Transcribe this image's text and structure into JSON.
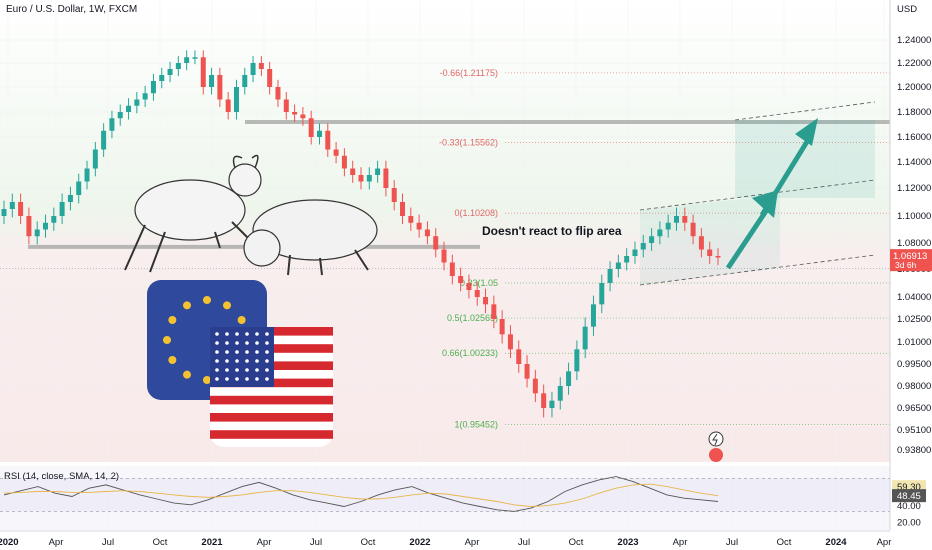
{
  "chart_title": "Euro / U.S. Dollar, 1W, FXCM",
  "chart_data": {
    "type": "candlestick",
    "title": "Euro / U.S. Dollar, 1W, FXCM",
    "currency": "USD",
    "y_ticks": [
      "1.24000",
      "1.22000",
      "1.20000",
      "1.18000",
      "1.16000",
      "1.14000",
      "1.12000",
      "1.10000",
      "1.08000",
      "1.06000",
      "1.04000",
      "1.02500",
      "1.01000",
      "0.99500",
      "0.98000",
      "0.96500",
      "0.95100",
      "0.93800"
    ],
    "x_ticks": [
      "2020",
      "Apr",
      "Jul",
      "Oct",
      "2021",
      "Apr",
      "Jul",
      "Oct",
      "2022",
      "Apr",
      "Jul",
      "Oct",
      "2023",
      "Apr",
      "Jul",
      "Oct",
      "2024",
      "Apr"
    ],
    "series": [
      {
        "name": "weekly close",
        "values": [
          1.105,
          1.11,
          1.1,
          1.085,
          1.09,
          1.095,
          1.1,
          1.11,
          1.115,
          1.125,
          1.135,
          1.15,
          1.165,
          1.175,
          1.18,
          1.185,
          1.19,
          1.195,
          1.205,
          1.21,
          1.215,
          1.22,
          1.225,
          1.225,
          1.2,
          1.21,
          1.19,
          1.18,
          1.2,
          1.21,
          1.22,
          1.215,
          1.2,
          1.19,
          1.18,
          1.178,
          1.175,
          1.16,
          1.165,
          1.15,
          1.145,
          1.135,
          1.13,
          1.125,
          1.13,
          1.135,
          1.12,
          1.11,
          1.1,
          1.095,
          1.09,
          1.085,
          1.075,
          1.065,
          1.055,
          1.05,
          1.045,
          1.04,
          1.035,
          1.025,
          1.015,
          1.005,
          0.995,
          0.985,
          0.975,
          0.965,
          0.97,
          0.98,
          0.99,
          1.005,
          1.02,
          1.035,
          1.05,
          1.06,
          1.065,
          1.07,
          1.075,
          1.08,
          1.085,
          1.09,
          1.095,
          1.1,
          1.095,
          1.085,
          1.075,
          1.07,
          1.069
        ]
      }
    ],
    "current_price": "1.06913",
    "countdown": "3d 6h",
    "annotations": {
      "note": "Doesn't react to flip area",
      "fib_levels": [
        {
          "label": "-0.66(1.21175)",
          "value": 1.21175
        },
        {
          "label": "-0.33(1.15562)",
          "value": 1.15562
        },
        {
          "label": "0(1.10208)",
          "value": 1.10208
        },
        {
          "label": "0.33(1.05",
          "value": 1.05
        },
        {
          "label": "0.5(1.02565)",
          "value": 1.02565
        },
        {
          "label": "0.66(1.00233)",
          "value": 1.00233
        },
        {
          "label": "1(0.95452)",
          "value": 0.95452
        }
      ],
      "resistance_levels": [
        1.172,
        1.077
      ],
      "colors": {
        "bull": "#26a69a",
        "bear": "#ef5350",
        "fib_upper": "#e06666",
        "fib_lower": "#4caf50",
        "channel": "#9e9e9e",
        "arrow": "#2a9d8f"
      }
    },
    "rsi": {
      "label": "RSI (14, close, SMA, 14, 2)",
      "value_1": "59.30",
      "value_2": "48.45",
      "ticks": [
        "40.00",
        "20.00"
      ],
      "levels": [
        70,
        30
      ],
      "series": [
        {
          "name": "rsi",
          "values": [
            50,
            55,
            60,
            52,
            48,
            58,
            62,
            56,
            50,
            45,
            40,
            38,
            44,
            52,
            60,
            65,
            58,
            50,
            44,
            40,
            36,
            42,
            50,
            56,
            60,
            52,
            46,
            40,
            36,
            32,
            30,
            34,
            42,
            54,
            62,
            68,
            72,
            66,
            58,
            50,
            46,
            44,
            42
          ]
        },
        {
          "name": "sma",
          "values": [
            52,
            53,
            54,
            54,
            53,
            53,
            54,
            55,
            54,
            52,
            50,
            48,
            47,
            48,
            50,
            53,
            55,
            55,
            53,
            50,
            47,
            45,
            45,
            47,
            50,
            52,
            51,
            48,
            45,
            42,
            38,
            36,
            37,
            40,
            45,
            52,
            58,
            62,
            63,
            60,
            56,
            52,
            49
          ]
        }
      ]
    }
  },
  "icons": [
    "bull-bear-icon",
    "eu-flag-icon",
    "us-flag-icon",
    "lightning-icon",
    "flag-icon"
  ]
}
